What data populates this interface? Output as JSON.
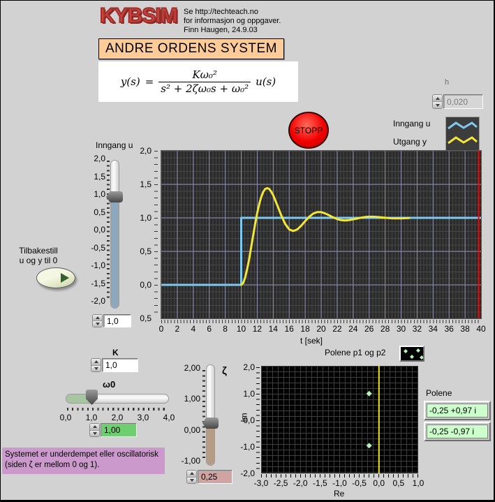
{
  "header": {
    "logo": "KYBSIM",
    "info_lines": [
      "Se http://techteach.no",
      "for informasjon og oppgaver.",
      "Finn Haugen, 24.9.03"
    ],
    "title": "ANDRE ORDENS SYSTEM",
    "formula": {
      "lhs": "y(s)",
      "eq": "=",
      "numerator": "Kω₀²",
      "denominator": "s² + 2ζω₀s + ω₀²",
      "rhs": "u(s)"
    }
  },
  "h_control": {
    "label": "h",
    "value": "0,020"
  },
  "stop_button": {
    "label": "STOPP"
  },
  "chart_legend": {
    "items": [
      {
        "label": "Inngang u",
        "color": "#7fc9f1"
      },
      {
        "label": "Utgang y",
        "color": "#f2e637"
      }
    ]
  },
  "input_slider": {
    "label": "Inngang u",
    "scale": [
      "2,0",
      "1,5",
      "1,0",
      "0,5",
      "0,0",
      "-0,5",
      "-1,0",
      "-1,5",
      "-2,0"
    ],
    "value": "1,0"
  },
  "reset_button": {
    "line1": "Tilbakestill",
    "line2": "u og y til 0"
  },
  "k_control": {
    "label": "K",
    "value": "1,0"
  },
  "w0_slider": {
    "label": "ω0",
    "scale": [
      "0,0",
      "1,0",
      "2,0",
      "3,0",
      "4,0"
    ],
    "value": "1,00"
  },
  "zeta_slider": {
    "label": "ζ",
    "scale": [
      "2,00",
      "1,00",
      "0,00",
      "-1,00"
    ],
    "value": "0,25"
  },
  "message_box": {
    "line1": "Systemet er underdempet eller oscillatorisk",
    "line2": "(siden ζ er mellom 0 og 1)."
  },
  "poles_display": {
    "label": "Polene",
    "p1": "-0,25 +0,97 i",
    "p2": "-0,25 -0,97 i"
  },
  "chart_data": [
    {
      "type": "line",
      "title": "",
      "xlabel": "t [sek]",
      "ylabel": "",
      "xlim": [
        0,
        40
      ],
      "ylim": [
        -0.5,
        2.0
      ],
      "xtick_labels": [
        "0",
        "2",
        "4",
        "6",
        "8",
        "10",
        "12",
        "14",
        "16",
        "18",
        "20",
        "22",
        "24",
        "26",
        "28",
        "30",
        "32",
        "34",
        "36",
        "38",
        "40"
      ],
      "ytick_labels": [
        "2,0",
        "1,5",
        "1,0",
        "0,5",
        "0,0",
        "0,5"
      ],
      "grid": {
        "x": [
          2,
          4,
          6,
          8,
          10,
          12,
          14,
          16,
          18,
          20,
          22,
          24,
          26,
          28,
          30,
          32,
          34,
          36,
          38
        ],
        "y": [
          1.5,
          1.0,
          0.5,
          0.0
        ],
        "color": "#8c8cae"
      },
      "bg": "#2b2b2b",
      "cursor": {
        "x": 39.7,
        "color": "#ff0000"
      },
      "series": [
        {
          "name": "Inngang u",
          "color": "#7fc9f1",
          "width": 3,
          "points": [
            [
              0,
              0
            ],
            [
              10,
              0
            ],
            [
              10,
              1
            ],
            [
              40,
              1
            ]
          ]
        },
        {
          "name": "Utgang y",
          "color": "#f2e637",
          "width": 3,
          "points": [
            [
              10,
              0
            ],
            [
              10.25,
              0.03
            ],
            [
              10.5,
              0.113
            ],
            [
              10.75,
              0.24
            ],
            [
              11,
              0.392
            ],
            [
              11.25,
              0.566
            ],
            [
              11.5,
              0.743
            ],
            [
              11.75,
              0.914
            ],
            [
              12,
              1.071
            ],
            [
              12.25,
              1.204
            ],
            [
              12.5,
              1.309
            ],
            [
              12.75,
              1.388
            ],
            [
              13,
              1.43
            ],
            [
              13.25,
              1.444
            ],
            [
              13.5,
              1.431
            ],
            [
              13.75,
              1.392
            ],
            [
              14,
              1.338
            ],
            [
              14.5,
              1.192
            ],
            [
              15,
              1.037
            ],
            [
              15.5,
              0.908
            ],
            [
              16,
              0.828
            ],
            [
              16.5,
              0.803
            ],
            [
              17,
              0.826
            ],
            [
              17.5,
              0.881
            ],
            [
              18,
              0.951
            ],
            [
              18.5,
              1.015
            ],
            [
              19,
              1.062
            ],
            [
              19.5,
              1.085
            ],
            [
              20,
              1.085
            ],
            [
              20.5,
              1.066
            ],
            [
              21,
              1.037
            ],
            [
              21.5,
              1.007
            ],
            [
              22,
              0.981
            ],
            [
              22.5,
              0.966
            ],
            [
              23,
              0.961
            ],
            [
              23.5,
              0.966
            ],
            [
              24,
              0.977
            ],
            [
              24.5,
              0.99
            ],
            [
              25,
              1.003
            ],
            [
              25.5,
              1.012
            ],
            [
              26,
              1.017
            ],
            [
              26.5,
              1.017
            ],
            [
              27,
              1.013
            ],
            [
              27.5,
              1.007
            ],
            [
              28,
              1.001
            ],
            [
              28.5,
              0.996
            ],
            [
              29,
              0.993
            ],
            [
              29.5,
              0.992
            ],
            [
              30,
              0.993
            ],
            [
              30.5,
              0.995
            ],
            [
              31,
              0.998
            ]
          ]
        }
      ]
    },
    {
      "type": "scatter",
      "title": "Polene p1 og p2",
      "xlabel": "Re",
      "ylabel": "Im",
      "xlim": [
        -3,
        1
      ],
      "ylim": [
        -2,
        2
      ],
      "xtick_labels": [
        "-3,0",
        "-2,5",
        "-2,0",
        "-1,5",
        "-1,0",
        "-0,5",
        "0,0",
        "0,5",
        "1,0"
      ],
      "ytick_labels": [
        "2,0",
        "1,0",
        "0,0",
        "-1,0",
        "-2,0"
      ],
      "points": [
        [
          -0.25,
          0.97
        ],
        [
          -0.25,
          -0.97
        ]
      ],
      "marker_color": "#b7f5b7",
      "axis_line": {
        "x": 0,
        "color": "#efe32a"
      },
      "bg": "#000000"
    }
  ]
}
